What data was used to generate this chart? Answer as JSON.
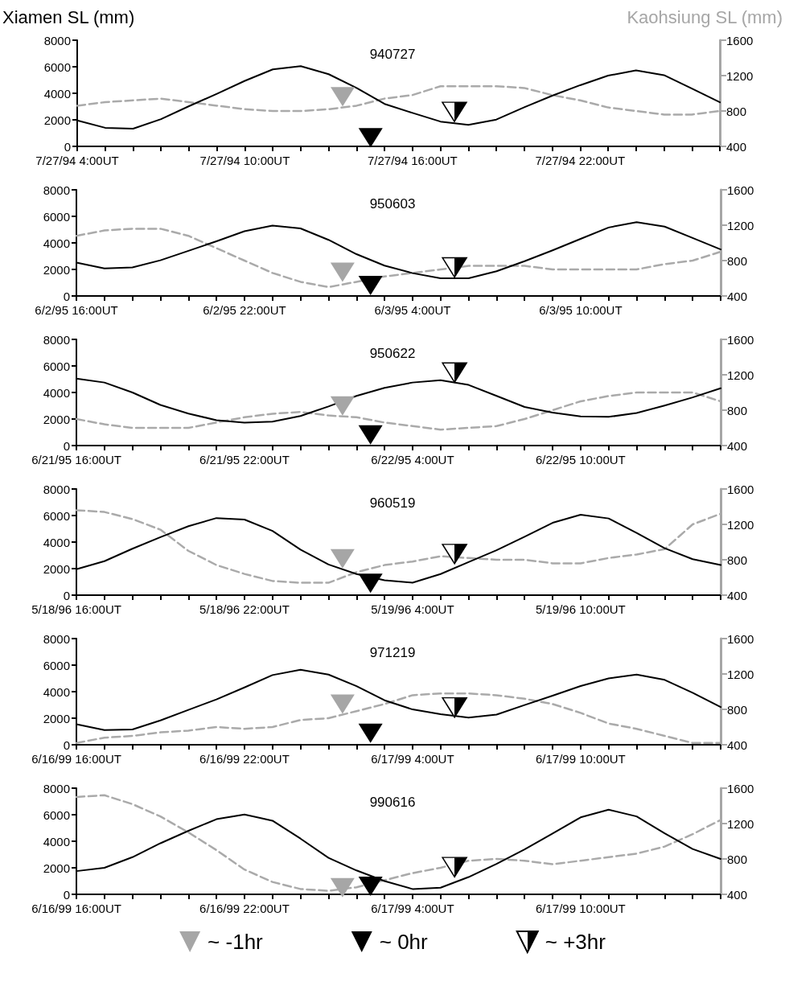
{
  "chart_data": [
    {
      "type": "line",
      "title": "940727",
      "ylabel": "Xiamen SL (mm)",
      "y2label": "Kaohsiung SL (mm)",
      "x": [
        "1994-07-27T04:00",
        "1994-07-27T05:00",
        "1994-07-27T06:00",
        "1994-07-27T07:00",
        "1994-07-27T08:00",
        "1994-07-27T09:00",
        "1994-07-27T10:00",
        "1994-07-27T11:00",
        "1994-07-27T12:00",
        "1994-07-27T13:00",
        "1994-07-27T14:00",
        "1994-07-27T15:00",
        "1994-07-27T16:00",
        "1994-07-27T17:00",
        "1994-07-27T18:00",
        "1994-07-27T19:00",
        "1994-07-27T20:00",
        "1994-07-27T21:00",
        "1994-07-27T22:00",
        "1994-07-27T23:00",
        "1994-07-28T00:00",
        "1994-07-28T01:00",
        "1994-07-28T02:00",
        "1994-07-28T03:00"
      ],
      "xlim": [
        "1994-07-27T04:00",
        "1994-07-28T03:00"
      ],
      "xticks": [
        {
          "value": "1994-07-27T04:00",
          "label": "7/27/94 4:00UT"
        },
        {
          "value": "1994-07-27T05:00",
          "label": null
        },
        {
          "value": "1994-07-27T06:00",
          "label": null
        },
        {
          "value": "1994-07-27T07:00",
          "label": null
        },
        {
          "value": "1994-07-27T08:00",
          "label": null
        },
        {
          "value": "1994-07-27T09:00",
          "label": null
        },
        {
          "value": "1994-07-27T10:00",
          "label": "7/27/94 10:00UT"
        },
        {
          "value": "1994-07-27T11:00",
          "label": null
        },
        {
          "value": "1994-07-27T12:00",
          "label": null
        },
        {
          "value": "1994-07-27T13:00",
          "label": null
        },
        {
          "value": "1994-07-27T14:00",
          "label": null
        },
        {
          "value": "1994-07-27T15:00",
          "label": null
        },
        {
          "value": "1994-07-27T16:00",
          "label": "7/27/94 16:00UT"
        },
        {
          "value": "1994-07-27T17:00",
          "label": null
        },
        {
          "value": "1994-07-27T18:00",
          "label": null
        },
        {
          "value": "1994-07-27T19:00",
          "label": null
        },
        {
          "value": "1994-07-27T20:00",
          "label": null
        },
        {
          "value": "1994-07-27T21:00",
          "label": null
        },
        {
          "value": "1994-07-27T22:00",
          "label": "7/27/94 22:00UT"
        },
        {
          "value": "1994-07-27T23:00",
          "label": null
        },
        {
          "value": "1994-07-28T00:00",
          "label": null
        },
        {
          "value": "1994-07-28T01:00",
          "label": null
        },
        {
          "value": "1994-07-28T02:00",
          "label": null
        },
        {
          "value": "1994-07-28T03:00",
          "label": null
        }
      ],
      "ylim": [
        0,
        8000
      ],
      "yticks": [
        0,
        2000,
        4000,
        6000,
        8000
      ],
      "y2lim": [
        400,
        1600
      ],
      "y2ticks": [
        400,
        800,
        1200,
        1600
      ],
      "series": [
        {
          "color": "#000000",
          "marker": "none",
          "line_style": "solid",
          "values": [
            1950,
            1400,
            1330,
            2050,
            3030,
            3960,
            4940,
            5800,
            6050,
            5440,
            4400,
            3200,
            2520,
            1870,
            1620,
            2020,
            2950,
            3820,
            4610,
            5330,
            5730,
            5370,
            4360,
            3320
          ]
        },
        {
          "color": "#aaaaaa",
          "marker": "none",
          "line_style": "dashed",
          "axis": "y2",
          "values": [
            860,
            900,
            920,
            940,
            900,
            860,
            820,
            800,
            800,
            820,
            860,
            940,
            980,
            1080,
            1080,
            1080,
            1060,
            980,
            920,
            840,
            800,
            760,
            760,
            800
          ]
        },
        {
          "type": "scatter",
          "color": "#a6a6a6",
          "marker": "triangle",
          "x": [
            "1994-07-27T13:30"
          ],
          "values": [
            3750
          ]
        },
        {
          "type": "scatter",
          "color": "#000000",
          "marker": "triangle",
          "x": [
            "1994-07-27T14:30"
          ],
          "values": [
            650
          ]
        },
        {
          "type": "scatter",
          "color": "#000000",
          "marker": "triangle",
          "x": [
            "1994-07-27T17:30"
          ],
          "values": [
            2600
          ]
        }
      ]
    },
    {
      "type": "line",
      "title": "950603",
      "x": [
        "1995-06-02T16:00",
        "1995-06-02T17:00",
        "1995-06-02T18:00",
        "1995-06-02T19:00",
        "1995-06-02T20:00",
        "1995-06-02T21:00",
        "1995-06-02T22:00",
        "1995-06-02T23:00",
        "1995-06-03T00:00",
        "1995-06-03T01:00",
        "1995-06-03T02:00",
        "1995-06-03T03:00",
        "1995-06-03T04:00",
        "1995-06-03T05:00",
        "1995-06-03T06:00",
        "1995-06-03T07:00",
        "1995-06-03T08:00",
        "1995-06-03T09:00",
        "1995-06-03T10:00",
        "1995-06-03T11:00",
        "1995-06-03T12:00",
        "1995-06-03T13:00",
        "1995-06-03T14:00",
        "1995-06-03T15:00"
      ],
      "xlim": [
        "1995-06-02T16:00",
        "1995-06-03T15:00"
      ],
      "xticks": [
        {
          "value": "1995-06-02T16:00",
          "label": "6/2/95 16:00UT"
        },
        {
          "value": "1995-06-02T17:00",
          "label": null
        },
        {
          "value": "1995-06-02T18:00",
          "label": null
        },
        {
          "value": "1995-06-02T19:00",
          "label": null
        },
        {
          "value": "1995-06-02T20:00",
          "label": null
        },
        {
          "value": "1995-06-02T21:00",
          "label": null
        },
        {
          "value": "1995-06-02T22:00",
          "label": "6/2/95 22:00UT"
        },
        {
          "value": "1995-06-02T23:00",
          "label": null
        },
        {
          "value": "1995-06-03T00:00",
          "label": null
        },
        {
          "value": "1995-06-03T01:00",
          "label": null
        },
        {
          "value": "1995-06-03T02:00",
          "label": null
        },
        {
          "value": "1995-06-03T03:00",
          "label": null
        },
        {
          "value": "1995-06-03T04:00",
          "label": "6/3/95 4:00UT"
        },
        {
          "value": "1995-06-03T05:00",
          "label": null
        },
        {
          "value": "1995-06-03T06:00",
          "label": null
        },
        {
          "value": "1995-06-03T07:00",
          "label": null
        },
        {
          "value": "1995-06-03T08:00",
          "label": null
        },
        {
          "value": "1995-06-03T09:00",
          "label": null
        },
        {
          "value": "1995-06-03T10:00",
          "label": "6/3/95 10:00UT"
        },
        {
          "value": "1995-06-03T11:00",
          "label": null
        },
        {
          "value": "1995-06-03T12:00",
          "label": null
        },
        {
          "value": "1995-06-03T13:00",
          "label": null
        },
        {
          "value": "1995-06-03T14:00",
          "label": null
        },
        {
          "value": "1995-06-03T15:00",
          "label": null
        }
      ],
      "ylim": [
        0,
        8000
      ],
      "yticks": [
        0,
        2000,
        4000,
        6000,
        8000
      ],
      "y2lim": [
        400,
        1600
      ],
      "y2ticks": [
        400,
        800,
        1200,
        1600
      ],
      "series": [
        {
          "color": "#000000",
          "marker": "none",
          "line_style": "solid",
          "values": [
            2510,
            2080,
            2150,
            2690,
            3400,
            4120,
            4880,
            5300,
            5090,
            4230,
            3150,
            2290,
            1720,
            1330,
            1330,
            1860,
            2620,
            3440,
            4300,
            5160,
            5560,
            5230,
            4370,
            3510
          ]
        },
        {
          "color": "#aaaaaa",
          "marker": "none",
          "line_style": "dashed",
          "axis": "y2",
          "values": [
            1080,
            1140,
            1160,
            1160,
            1080,
            940,
            800,
            660,
            560,
            500,
            560,
            620,
            660,
            700,
            740,
            740,
            740,
            700,
            700,
            700,
            700,
            760,
            800,
            900
          ]
        },
        {
          "type": "scatter",
          "color": "#a6a6a6",
          "marker": "triangle",
          "x": [
            "1995-06-03T01:30"
          ],
          "values": [
            1790
          ]
        },
        {
          "type": "scatter",
          "color": "#000000",
          "marker": "triangle",
          "x": [
            "1995-06-03T02:30"
          ],
          "values": [
            790
          ]
        },
        {
          "type": "scatter",
          "color": "#000000",
          "marker": "triangle",
          "x": [
            "1995-06-03T05:30"
          ],
          "values": [
            2150
          ]
        }
      ]
    },
    {
      "type": "line",
      "title": "950622",
      "x": [
        "1995-06-21T16:00",
        "1995-06-21T17:00",
        "1995-06-21T18:00",
        "1995-06-21T19:00",
        "1995-06-21T20:00",
        "1995-06-21T21:00",
        "1995-06-21T22:00",
        "1995-06-21T23:00",
        "1995-06-22T00:00",
        "1995-06-22T01:00",
        "1995-06-22T02:00",
        "1995-06-22T03:00",
        "1995-06-22T04:00",
        "1995-06-22T05:00",
        "1995-06-22T06:00",
        "1995-06-22T07:00",
        "1995-06-22T08:00",
        "1995-06-22T09:00",
        "1995-06-22T10:00",
        "1995-06-22T11:00",
        "1995-06-22T12:00",
        "1995-06-22T13:00",
        "1995-06-22T14:00",
        "1995-06-22T15:00"
      ],
      "xlim": [
        "1995-06-21T16:00",
        "1995-06-22T15:00"
      ],
      "xticks": [
        {
          "value": "1995-06-21T16:00",
          "label": "6/21/95 16:00UT"
        },
        {
          "value": "1995-06-21T17:00",
          "label": null
        },
        {
          "value": "1995-06-21T18:00",
          "label": null
        },
        {
          "value": "1995-06-21T19:00",
          "label": null
        },
        {
          "value": "1995-06-21T20:00",
          "label": null
        },
        {
          "value": "1995-06-21T21:00",
          "label": null
        },
        {
          "value": "1995-06-21T22:00",
          "label": "6/21/95 22:00UT"
        },
        {
          "value": "1995-06-21T23:00",
          "label": null
        },
        {
          "value": "1995-06-22T00:00",
          "label": null
        },
        {
          "value": "1995-06-22T01:00",
          "label": null
        },
        {
          "value": "1995-06-22T02:00",
          "label": null
        },
        {
          "value": "1995-06-22T03:00",
          "label": null
        },
        {
          "value": "1995-06-22T04:00",
          "label": "6/22/95 4:00UT"
        },
        {
          "value": "1995-06-22T05:00",
          "label": null
        },
        {
          "value": "1995-06-22T06:00",
          "label": null
        },
        {
          "value": "1995-06-22T07:00",
          "label": null
        },
        {
          "value": "1995-06-22T08:00",
          "label": null
        },
        {
          "value": "1995-06-22T09:00",
          "label": null
        },
        {
          "value": "1995-06-22T10:00",
          "label": "6/22/95 10:00UT"
        },
        {
          "value": "1995-06-22T11:00",
          "label": null
        },
        {
          "value": "1995-06-22T12:00",
          "label": null
        },
        {
          "value": "1995-06-22T13:00",
          "label": null
        },
        {
          "value": "1995-06-22T14:00",
          "label": null
        },
        {
          "value": "1995-06-22T15:00",
          "label": null
        }
      ],
      "ylim": [
        0,
        8000
      ],
      "yticks": [
        0,
        2000,
        4000,
        6000,
        8000
      ],
      "y2lim": [
        400,
        1600
      ],
      "y2ticks": [
        400,
        800,
        1200,
        1600
      ],
      "series": [
        {
          "color": "#000000",
          "marker": "none",
          "line_style": "solid",
          "values": [
            5040,
            4750,
            4000,
            3060,
            2410,
            1910,
            1730,
            1800,
            2230,
            2950,
            3740,
            4350,
            4750,
            4930,
            4570,
            3740,
            2910,
            2480,
            2190,
            2160,
            2450,
            3020,
            3630,
            4320
          ]
        },
        {
          "color": "#aaaaaa",
          "marker": "none",
          "line_style": "dashed",
          "axis": "y2",
          "values": [
            700,
            640,
            600,
            600,
            600,
            660,
            720,
            760,
            780,
            740,
            720,
            660,
            620,
            580,
            600,
            620,
            700,
            800,
            900,
            960,
            1000,
            1000,
            1000,
            900
          ]
        },
        {
          "type": "scatter",
          "color": "#a6a6a6",
          "marker": "triangle",
          "x": [
            "1995-06-22T01:30"
          ],
          "values": [
            2990
          ]
        },
        {
          "type": "scatter",
          "color": "#000000",
          "marker": "triangle",
          "x": [
            "1995-06-22T02:30"
          ],
          "values": [
            800
          ]
        },
        {
          "type": "scatter",
          "color": "#000000",
          "marker": "triangle",
          "x": [
            "1995-06-22T05:30"
          ],
          "values": [
            5500
          ]
        }
      ]
    },
    {
      "type": "line",
      "title": "960519",
      "x": [
        "1996-05-18T16:00",
        "1996-05-18T17:00",
        "1996-05-18T18:00",
        "1996-05-18T19:00",
        "1996-05-18T20:00",
        "1996-05-18T21:00",
        "1996-05-18T22:00",
        "1996-05-18T23:00",
        "1996-05-19T00:00",
        "1996-05-19T01:00",
        "1996-05-19T02:00",
        "1996-05-19T03:00",
        "1996-05-19T04:00",
        "1996-05-19T05:00",
        "1996-05-19T06:00",
        "1996-05-19T07:00",
        "1996-05-19T08:00",
        "1996-05-19T09:00",
        "1996-05-19T10:00",
        "1996-05-19T11:00",
        "1996-05-19T12:00",
        "1996-05-19T13:00",
        "1996-05-19T14:00",
        "1996-05-19T15:00"
      ],
      "xlim": [
        "1996-05-18T16:00",
        "1996-05-19T15:00"
      ],
      "xticks": [
        {
          "value": "1996-05-18T16:00",
          "label": "5/18/96 16:00UT"
        },
        {
          "value": "1996-05-18T17:00",
          "label": null
        },
        {
          "value": "1996-05-18T18:00",
          "label": null
        },
        {
          "value": "1996-05-18T19:00",
          "label": null
        },
        {
          "value": "1996-05-18T20:00",
          "label": null
        },
        {
          "value": "1996-05-18T21:00",
          "label": null
        },
        {
          "value": "1996-05-18T22:00",
          "label": "5/18/96 22:00UT"
        },
        {
          "value": "1996-05-18T23:00",
          "label": null
        },
        {
          "value": "1996-05-19T00:00",
          "label": null
        },
        {
          "value": "1996-05-19T01:00",
          "label": null
        },
        {
          "value": "1996-05-19T02:00",
          "label": null
        },
        {
          "value": "1996-05-19T03:00",
          "label": null
        },
        {
          "value": "1996-05-19T04:00",
          "label": "5/19/96 4:00UT"
        },
        {
          "value": "1996-05-19T05:00",
          "label": null
        },
        {
          "value": "1996-05-19T06:00",
          "label": null
        },
        {
          "value": "1996-05-19T07:00",
          "label": null
        },
        {
          "value": "1996-05-19T08:00",
          "label": null
        },
        {
          "value": "1996-05-19T09:00",
          "label": null
        },
        {
          "value": "1996-05-19T10:00",
          "label": "5/19/96 10:00UT"
        },
        {
          "value": "1996-05-19T11:00",
          "label": null
        },
        {
          "value": "1996-05-19T12:00",
          "label": null
        },
        {
          "value": "1996-05-19T13:00",
          "label": null
        },
        {
          "value": "1996-05-19T14:00",
          "label": null
        },
        {
          "value": "1996-05-19T15:00",
          "label": null
        }
      ],
      "ylim": [
        0,
        8000
      ],
      "yticks": [
        0,
        2000,
        4000,
        6000,
        8000
      ],
      "y2lim": [
        400,
        1600
      ],
      "y2ticks": [
        400,
        800,
        1200,
        1600
      ],
      "series": [
        {
          "color": "#000000",
          "marker": "none",
          "line_style": "solid",
          "values": [
            1950,
            2560,
            3500,
            4370,
            5200,
            5810,
            5700,
            4840,
            3430,
            2310,
            1590,
            1120,
            940,
            1590,
            2490,
            3390,
            4400,
            5450,
            6060,
            5780,
            4690,
            3540,
            2710,
            2270
          ]
        },
        {
          "color": "#aaaaaa",
          "marker": "none",
          "line_style": "dashed",
          "axis": "y2",
          "values": [
            1360,
            1340,
            1260,
            1140,
            900,
            740,
            640,
            560,
            540,
            540,
            660,
            740,
            780,
            840,
            820,
            800,
            800,
            760,
            760,
            820,
            860,
            920,
            1200,
            1320
          ]
        },
        {
          "type": "scatter",
          "color": "#a6a6a6",
          "marker": "triangle",
          "x": [
            "1996-05-19T01:30"
          ],
          "values": [
            2740
          ]
        },
        {
          "type": "scatter",
          "color": "#000000",
          "marker": "triangle",
          "x": [
            "1996-05-19T02:30"
          ],
          "values": [
            900
          ]
        },
        {
          "type": "scatter",
          "color": "#000000",
          "marker": "triangle",
          "x": [
            "1996-05-19T05:30"
          ],
          "values": [
            3100
          ]
        }
      ]
    },
    {
      "type": "line",
      "title": "971219",
      "x": [
        "1999-06-16T16:00",
        "1999-06-16T17:00",
        "1999-06-16T18:00",
        "1999-06-16T19:00",
        "1999-06-16T20:00",
        "1999-06-16T21:00",
        "1999-06-16T22:00",
        "1999-06-16T23:00",
        "1999-06-17T00:00",
        "1999-06-17T01:00",
        "1999-06-17T02:00",
        "1999-06-17T03:00",
        "1999-06-17T04:00",
        "1999-06-17T05:00",
        "1999-06-17T06:00",
        "1999-06-17T07:00",
        "1999-06-17T08:00",
        "1999-06-17T09:00",
        "1999-06-17T10:00",
        "1999-06-17T11:00",
        "1999-06-17T12:00",
        "1999-06-17T13:00",
        "1999-06-17T14:00",
        "1999-06-17T15:00"
      ],
      "xlim": [
        "1999-06-16T16:00",
        "1999-06-17T15:00"
      ],
      "xticks": [
        {
          "value": "1999-06-16T16:00",
          "label": "6/16/99 16:00UT"
        },
        {
          "value": "1999-06-16T17:00",
          "label": null
        },
        {
          "value": "1999-06-16T18:00",
          "label": null
        },
        {
          "value": "1999-06-16T19:00",
          "label": null
        },
        {
          "value": "1999-06-16T20:00",
          "label": null
        },
        {
          "value": "1999-06-16T21:00",
          "label": null
        },
        {
          "value": "1999-06-16T22:00",
          "label": "6/16/99 22:00UT"
        },
        {
          "value": "1999-06-16T23:00",
          "label": null
        },
        {
          "value": "1999-06-17T00:00",
          "label": null
        },
        {
          "value": "1999-06-17T01:00",
          "label": null
        },
        {
          "value": "1999-06-17T02:00",
          "label": null
        },
        {
          "value": "1999-06-17T03:00",
          "label": null
        },
        {
          "value": "1999-06-17T04:00",
          "label": "6/17/99 4:00UT"
        },
        {
          "value": "1999-06-17T05:00",
          "label": null
        },
        {
          "value": "1999-06-17T06:00",
          "label": null
        },
        {
          "value": "1999-06-17T07:00",
          "label": null
        },
        {
          "value": "1999-06-17T08:00",
          "label": null
        },
        {
          "value": "1999-06-17T09:00",
          "label": null
        },
        {
          "value": "1999-06-17T10:00",
          "label": "6/17/99 10:00UT"
        },
        {
          "value": "1999-06-17T11:00",
          "label": null
        },
        {
          "value": "1999-06-17T12:00",
          "label": null
        },
        {
          "value": "1999-06-17T13:00",
          "label": null
        },
        {
          "value": "1999-06-17T14:00",
          "label": null
        },
        {
          "value": "1999-06-17T15:00",
          "label": null
        }
      ],
      "ylim": [
        0,
        8000
      ],
      "yticks": [
        0,
        2000,
        4000,
        6000,
        8000
      ],
      "y2lim": [
        400,
        1600
      ],
      "y2ticks": [
        400,
        800,
        1200,
        1600
      ],
      "series": [
        {
          "color": "#000000",
          "marker": "none",
          "line_style": "solid",
          "values": [
            1550,
            1100,
            1150,
            1830,
            2630,
            3420,
            4320,
            5250,
            5650,
            5290,
            4420,
            3350,
            2660,
            2300,
            2050,
            2270,
            2990,
            3700,
            4420,
            5000,
            5290,
            4890,
            3920,
            2840
          ]
        },
        {
          "color": "#aaaaaa",
          "marker": "none",
          "line_style": "dashed",
          "axis": "y2",
          "values": [
            420,
            480,
            500,
            540,
            560,
            600,
            580,
            600,
            680,
            700,
            780,
            860,
            960,
            980,
            980,
            960,
            920,
            860,
            760,
            640,
            580,
            500,
            420,
            420
          ]
        },
        {
          "type": "scatter",
          "color": "#a6a6a6",
          "marker": "triangle",
          "x": [
            "1999-06-17T01:30"
          ],
          "values": [
            3060
          ]
        },
        {
          "type": "scatter",
          "color": "#000000",
          "marker": "triangle",
          "x": [
            "1999-06-17T02:30"
          ],
          "values": [
            860
          ]
        },
        {
          "type": "scatter",
          "color": "#000000",
          "marker": "triangle",
          "x": [
            "1999-06-17T05:30"
          ],
          "values": [
            2810
          ]
        }
      ]
    },
    {
      "type": "line",
      "title": "990616",
      "legend": "bottom",
      "x": [
        "1999-06-16T16:00",
        "1999-06-16T17:00",
        "1999-06-16T18:00",
        "1999-06-16T19:00",
        "1999-06-16T20:00",
        "1999-06-16T21:00",
        "1999-06-16T22:00",
        "1999-06-16T23:00",
        "1999-06-17T00:00",
        "1999-06-17T01:00",
        "1999-06-17T02:00",
        "1999-06-17T03:00",
        "1999-06-17T04:00",
        "1999-06-17T05:00",
        "1999-06-17T06:00",
        "1999-06-17T07:00",
        "1999-06-17T08:00",
        "1999-06-17T09:00",
        "1999-06-17T10:00",
        "1999-06-17T11:00",
        "1999-06-17T12:00",
        "1999-06-17T13:00",
        "1999-06-17T14:00",
        "1999-06-17T15:00"
      ],
      "xlim": [
        "1999-06-16T16:00",
        "1999-06-17T15:00"
      ],
      "xticks": [
        {
          "value": "1999-06-16T16:00",
          "label": "6/16/99 16:00UT"
        },
        {
          "value": "1999-06-16T17:00",
          "label": null
        },
        {
          "value": "1999-06-16T18:00",
          "label": null
        },
        {
          "value": "1999-06-16T19:00",
          "label": null
        },
        {
          "value": "1999-06-16T20:00",
          "label": null
        },
        {
          "value": "1999-06-16T21:00",
          "label": null
        },
        {
          "value": "1999-06-16T22:00",
          "label": "6/16/99 22:00UT"
        },
        {
          "value": "1999-06-16T23:00",
          "label": null
        },
        {
          "value": "1999-06-17T00:00",
          "label": null
        },
        {
          "value": "1999-06-17T01:00",
          "label": null
        },
        {
          "value": "1999-06-17T02:00",
          "label": null
        },
        {
          "value": "1999-06-17T03:00",
          "label": null
        },
        {
          "value": "1999-06-17T04:00",
          "label": "6/17/99 4:00UT"
        },
        {
          "value": "1999-06-17T05:00",
          "label": null
        },
        {
          "value": "1999-06-17T06:00",
          "label": null
        },
        {
          "value": "1999-06-17T07:00",
          "label": null
        },
        {
          "value": "1999-06-17T08:00",
          "label": null
        },
        {
          "value": "1999-06-17T09:00",
          "label": null
        },
        {
          "value": "1999-06-17T10:00",
          "label": "6/17/99 10:00UT"
        },
        {
          "value": "1999-06-17T11:00",
          "label": null
        },
        {
          "value": "1999-06-17T12:00",
          "label": null
        },
        {
          "value": "1999-06-17T13:00",
          "label": null
        },
        {
          "value": "1999-06-17T14:00",
          "label": null
        },
        {
          "value": "1999-06-17T15:00",
          "label": null
        }
      ],
      "ylim": [
        0,
        8000
      ],
      "yticks": [
        0,
        2000,
        4000,
        6000,
        8000
      ],
      "y2lim": [
        400,
        1600
      ],
      "y2ticks": [
        400,
        800,
        1200,
        1600
      ],
      "series": [
        {
          "color": "#000000",
          "marker": "none",
          "line_style": "solid",
          "values": [
            1750,
            2000,
            2800,
            3850,
            4790,
            5660,
            6020,
            5550,
            4200,
            2750,
            1800,
            1000,
            400,
            500,
            1300,
            2300,
            3390,
            4580,
            5800,
            6380,
            5870,
            4600,
            3420,
            2670
          ]
        },
        {
          "color": "#aaaaaa",
          "marker": "none",
          "line_style": "dashed",
          "axis": "y2",
          "values": [
            1500,
            1520,
            1420,
            1280,
            1100,
            900,
            680,
            540,
            460,
            440,
            480,
            560,
            640,
            700,
            780,
            800,
            780,
            740,
            780,
            820,
            860,
            940,
            1080,
            1240
          ]
        },
        {
          "type": "scatter",
          "name": "~ -1hr",
          "color": "#a6a6a6",
          "marker": "triangle",
          "x": [
            "1999-06-17T01:30"
          ],
          "values": [
            500
          ]
        },
        {
          "type": "scatter",
          "name": "~ 0hr",
          "color": "#000000",
          "marker": "triangle",
          "x": [
            "1999-06-17T02:30"
          ],
          "values": [
            600
          ]
        },
        {
          "type": "scatter",
          "name": "~ +3hr",
          "color": "#000000",
          "marker": "triangle",
          "x": [
            "1999-06-17T05:30"
          ],
          "values": [
            2050
          ]
        }
      ]
    }
  ]
}
